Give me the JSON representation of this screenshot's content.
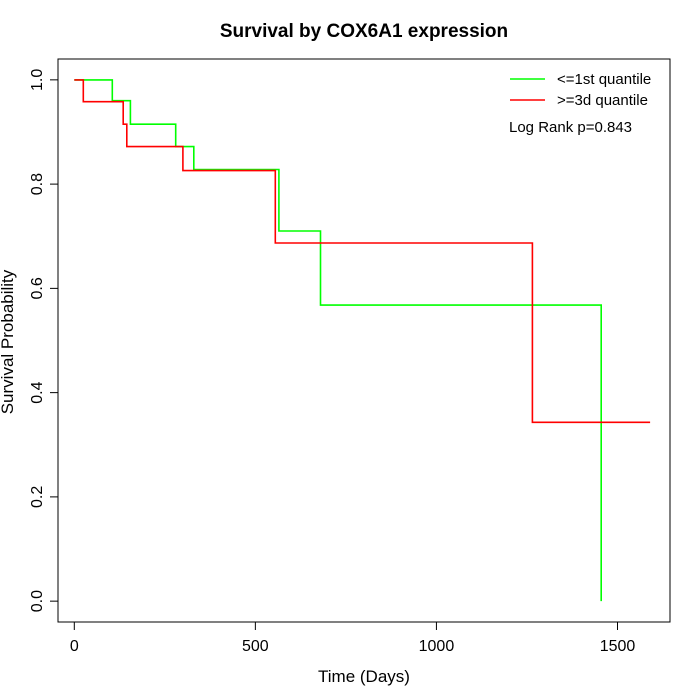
{
  "chart_data": {
    "type": "line",
    "title": "Survival by COX6A1 expression",
    "xlabel": "Time (Days)",
    "ylabel": "Survival Probability",
    "xlim": [
      -45,
      1645
    ],
    "ylim": [
      -0.04,
      1.04
    ],
    "x_ticks": [
      0,
      500,
      1000,
      1500
    ],
    "x_tick_labels": [
      "0",
      "500",
      "1000",
      "1500"
    ],
    "y_ticks": [
      0.0,
      0.2,
      0.4,
      0.6,
      0.8,
      1.0
    ],
    "y_tick_labels": [
      "0.0",
      "0.2",
      "0.4",
      "0.6",
      "0.8",
      "1.0"
    ],
    "legend_position": "top-right",
    "annotation": "Log Rank p=0.843",
    "series": [
      {
        "name": "<=1st quantile",
        "color": "#00ff00",
        "points": [
          [
            0,
            1.0
          ],
          [
            105,
            1.0
          ],
          [
            105,
            0.96
          ],
          [
            155,
            0.96
          ],
          [
            155,
            0.915
          ],
          [
            280,
            0.915
          ],
          [
            280,
            0.872
          ],
          [
            330,
            0.872
          ],
          [
            330,
            0.828
          ],
          [
            565,
            0.828
          ],
          [
            565,
            0.71
          ],
          [
            680,
            0.71
          ],
          [
            680,
            0.568
          ],
          [
            1455,
            0.568
          ],
          [
            1455,
            0.0
          ]
        ]
      },
      {
        "name": ">=3d quantile",
        "color": "#ff0000",
        "points": [
          [
            0,
            1.0
          ],
          [
            25,
            1.0
          ],
          [
            25,
            0.958
          ],
          [
            135,
            0.958
          ],
          [
            135,
            0.915
          ],
          [
            145,
            0.915
          ],
          [
            145,
            0.872
          ],
          [
            300,
            0.872
          ],
          [
            300,
            0.826
          ],
          [
            555,
            0.826
          ],
          [
            555,
            0.687
          ],
          [
            1265,
            0.687
          ],
          [
            1265,
            0.343
          ],
          [
            1590,
            0.343
          ]
        ]
      }
    ]
  }
}
